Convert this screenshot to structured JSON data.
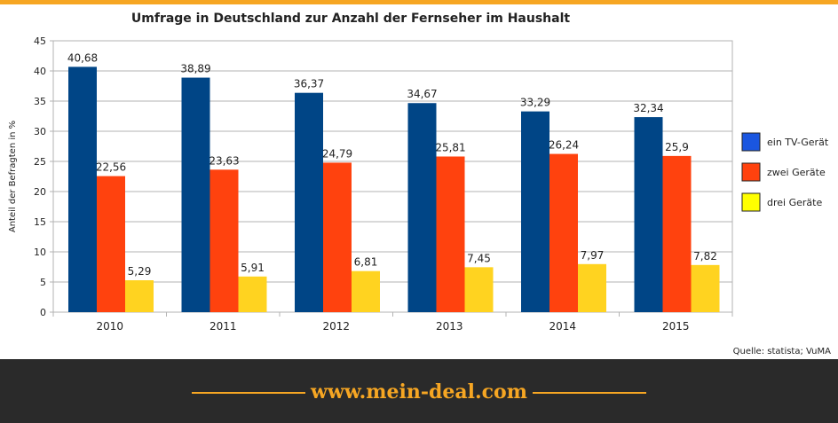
{
  "colors": {
    "series": [
      "#004586",
      "#ff420e",
      "#ffd320"
    ],
    "legend_swatches": [
      "#1a56e0",
      "#ff420e",
      "#ffff00"
    ],
    "accent": "#f6a623",
    "footer_bg": "#2a2a2a"
  },
  "chart_data": {
    "type": "bar",
    "title": "Umfrage in Deutschland zur Anzahl der Fernseher im Haushalt",
    "ylabel": "Anteil der Befragten in %",
    "xlabel": "",
    "ylim": [
      0,
      45
    ],
    "yticks": [
      0,
      5,
      10,
      15,
      20,
      25,
      30,
      35,
      40,
      45
    ],
    "grid": true,
    "legend_position": "right",
    "categories": [
      "2010",
      "2011",
      "2012",
      "2013",
      "2014",
      "2015"
    ],
    "series": [
      {
        "name": "ein TV-Gerät",
        "values": [
          40.68,
          38.89,
          36.37,
          34.67,
          33.29,
          32.34
        ],
        "labels": [
          "40,68",
          "38,89",
          "36,37",
          "34,67",
          "33,29",
          "32,34"
        ]
      },
      {
        "name": "zwei Geräte",
        "values": [
          22.56,
          23.63,
          24.79,
          25.81,
          26.24,
          25.9
        ],
        "labels": [
          "22,56",
          "23,63",
          "24,79",
          "25,81",
          "26,24",
          "25,9"
        ]
      },
      {
        "name": "drei Geräte",
        "values": [
          5.29,
          5.91,
          6.81,
          7.45,
          7.97,
          7.82
        ],
        "labels": [
          "5,29",
          "5,91",
          "6,81",
          "7,45",
          "7,97",
          "7,82"
        ]
      }
    ],
    "source": "Quelle: statista; VuMA"
  },
  "footer": {
    "website": "www.mein-deal.com"
  }
}
